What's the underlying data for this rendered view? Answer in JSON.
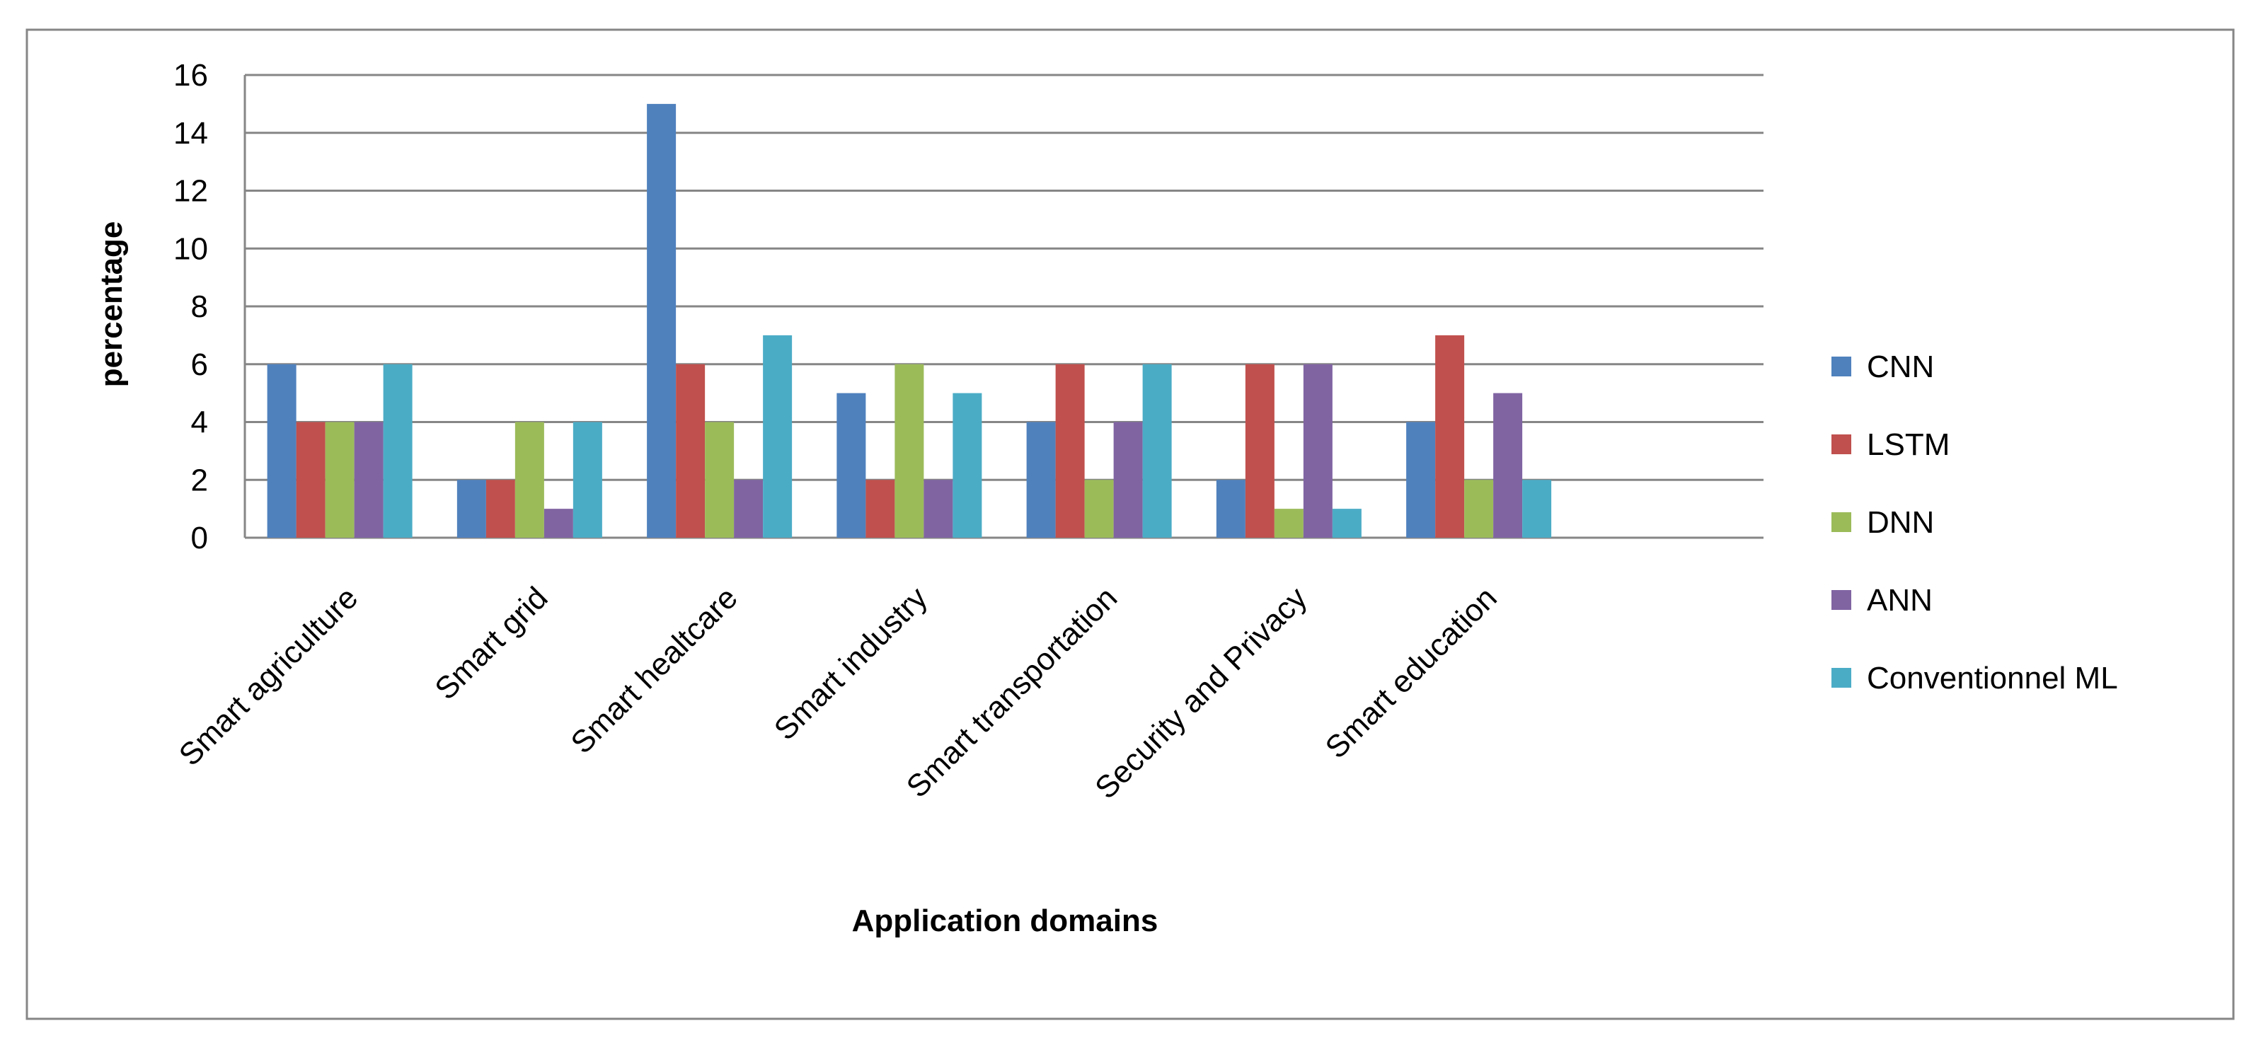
{
  "chart_data": {
    "type": "bar",
    "title": "",
    "xlabel": "Application domains",
    "ylabel": "percentage",
    "ylim": [
      0,
      16
    ],
    "yticks": [
      0,
      2,
      4,
      6,
      8,
      10,
      12,
      14,
      16
    ],
    "grid": true,
    "legend_position": "right",
    "categories": [
      "Smart agriculture",
      "Smart grid",
      "Smart healtcare",
      "Smart industry",
      "Smart transportation",
      "Security and Privacy",
      "Smart education"
    ],
    "series": [
      {
        "name": "CNN",
        "color": "#4F81BD",
        "values": [
          6,
          2,
          15,
          5,
          4,
          2,
          4
        ]
      },
      {
        "name": "LSTM",
        "color": "#C0504D",
        "values": [
          4,
          2,
          6,
          2,
          6,
          6,
          7
        ]
      },
      {
        "name": "DNN",
        "color": "#9BBB59",
        "values": [
          4,
          4,
          4,
          6,
          2,
          1,
          2
        ]
      },
      {
        "name": "ANN",
        "color": "#8064A2",
        "values": [
          4,
          1,
          2,
          2,
          4,
          6,
          5
        ]
      },
      {
        "name": "Conventionnel ML",
        "color": "#4BACC6",
        "values": [
          6,
          4,
          7,
          5,
          6,
          1,
          2
        ]
      }
    ]
  }
}
